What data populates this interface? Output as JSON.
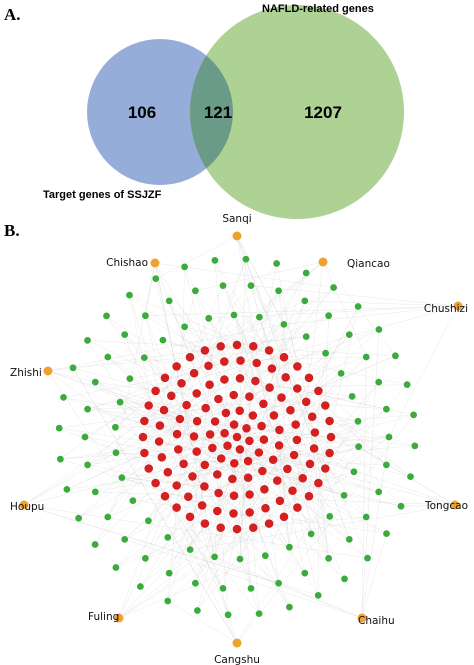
{
  "panel_a": {
    "letter": "A.",
    "sets": [
      {
        "label": "Target genes of SSJZF",
        "exclusive_count": "106",
        "color": "#8fa9d6"
      },
      {
        "label": "NAFLD-related genes",
        "exclusive_count": "1207",
        "color": "#aacf8e"
      }
    ],
    "intersection_count": "121",
    "intersection_color": "#6a9b88"
  },
  "panel_b": {
    "letter": "B.",
    "herbs": [
      "Sanqi",
      "Qiancao",
      "Chushizi",
      "Tongcao",
      "Chaihu",
      "Cangshu",
      "Fuling",
      "Houpu",
      "Zhishi",
      "Chishao"
    ],
    "colors": {
      "herb": "#f0a030",
      "compound": "#3daa3d",
      "target": "#d42020",
      "edge": "#c8c8c8"
    }
  }
}
